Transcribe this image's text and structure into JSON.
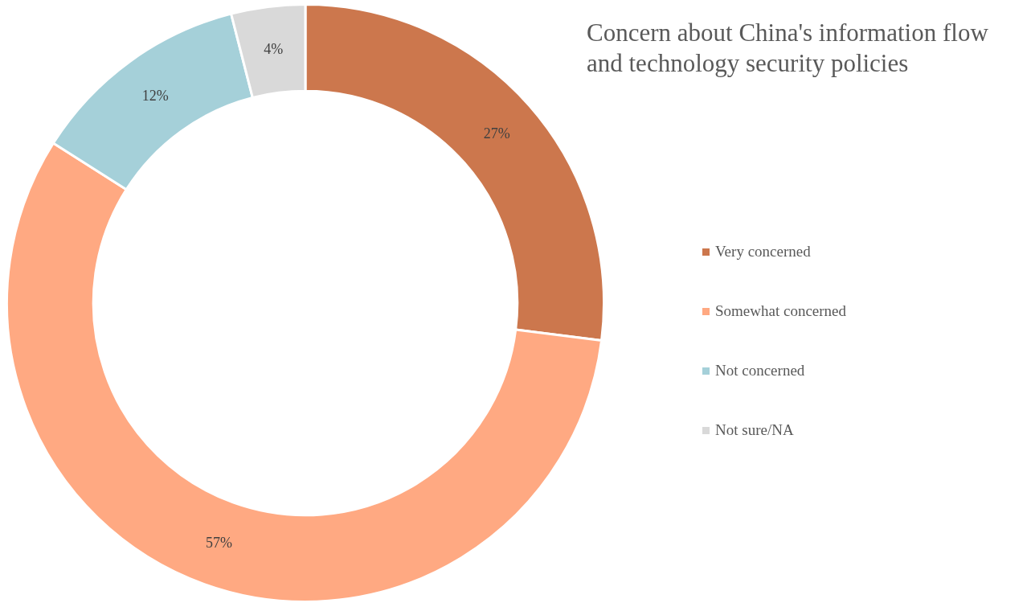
{
  "chart_data": {
    "type": "donut",
    "title": "Concern about China's information flow and technology security policies",
    "categories": [
      "Very concerned",
      "Somewhat concerned",
      "Not concerned",
      "Not sure/NA"
    ],
    "values": [
      27,
      57,
      12,
      4
    ],
    "value_labels": [
      "27%",
      "57%",
      "12%",
      "4%"
    ],
    "colors": [
      "#cc774d",
      "#ffa982",
      "#a5d0d9",
      "#d9d9d9"
    ],
    "legend": "right"
  }
}
